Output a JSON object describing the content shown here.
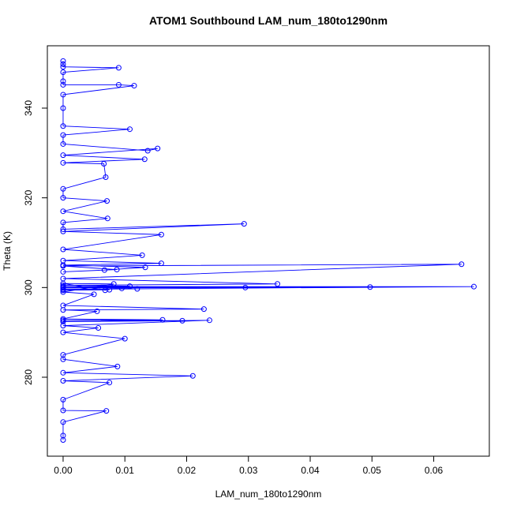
{
  "chart_data": {
    "type": "line",
    "title": "ATOM1 Southbound LAM_num_180to1290nm",
    "x_label": "LAM_num_180to1290nm",
    "y_label": "Theta (K)",
    "color": "#0000ff",
    "markers": true,
    "grid": false,
    "xlim": [
      -0.00255,
      0.069
    ],
    "ylim": [
      262.4,
      353.9
    ],
    "xticks": [
      {
        "value": 0,
        "label": "0.00"
      },
      {
        "value": 0.01,
        "label": "0.01"
      },
      {
        "value": 0.02,
        "label": "0.02"
      },
      {
        "value": 0.03,
        "label": "0.03"
      },
      {
        "value": 0.04,
        "label": "0.04"
      },
      {
        "value": 0.05,
        "label": "0.05"
      },
      {
        "value": 0.06,
        "label": "0.06"
      }
    ],
    "yticks": [
      280,
      300,
      320,
      340
    ],
    "x": [
      0,
      0,
      0,
      0.009,
      0,
      0,
      0,
      0.009,
      0.0115,
      0,
      0,
      0,
      0.0108,
      0,
      0,
      0.0137,
      0.0153,
      0,
      0.0132,
      0,
      0.0066,
      0.0069,
      0,
      0,
      0.0071,
      0,
      0.0072,
      0,
      0,
      0.0293,
      0,
      0.0159,
      0,
      0.0128,
      0,
      0.0159,
      0,
      0.0133,
      0.0067,
      0,
      0.0087,
      0,
      0.0645,
      0,
      0.0347,
      0,
      0.0108,
      0,
      0.0295,
      0,
      0.0497,
      0,
      0.0665,
      0,
      0.012,
      0.0095,
      0,
      0.0075,
      0.0068,
      0,
      0.0082,
      0,
      0.005,
      0,
      0.0228,
      0,
      0.0055,
      0,
      0.0161,
      0,
      0.0193,
      0,
      0.0237,
      0,
      0.0057,
      0,
      0.01,
      0,
      0,
      0.0088,
      0,
      0.021,
      0,
      0.0075,
      0,
      0,
      0.007,
      0,
      0,
      0
    ],
    "y": [
      350.5,
      349.8,
      349.2,
      349,
      348,
      346,
      345.2,
      345.2,
      345,
      343,
      340,
      336,
      335.3,
      334,
      332,
      330.5,
      331,
      329.5,
      328.6,
      327.8,
      327.6,
      324.6,
      322,
      320,
      319.3,
      317,
      315.4,
      314.5,
      313,
      314.2,
      312.5,
      311.8,
      308.5,
      307.2,
      306,
      305.4,
      305,
      304.5,
      303.9,
      303.5,
      304,
      304.8,
      305.2,
      302,
      300.8,
      300.5,
      300.3,
      300.1,
      300,
      299.9,
      300.1,
      300.2,
      300.2,
      299.6,
      299.7,
      299.8,
      299.4,
      299.5,
      299.4,
      300.9,
      300.8,
      299,
      298.5,
      296,
      295.2,
      295,
      294.7,
      293,
      292.8,
      292.7,
      292.6,
      292.4,
      292.7,
      291.5,
      291,
      290,
      288.6,
      285,
      284,
      282.4,
      281,
      280.3,
      279.2,
      278.8,
      275,
      272.6,
      272.5,
      270,
      267,
      266
    ]
  }
}
